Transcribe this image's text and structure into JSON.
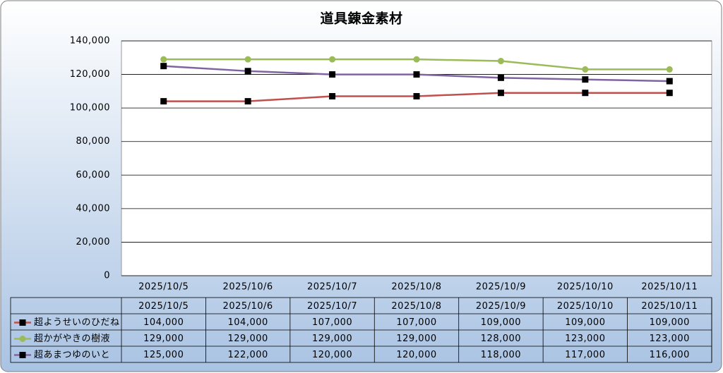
{
  "chart_data": {
    "type": "line",
    "title": "道具錬金素材",
    "categories": [
      "2025/10/5",
      "2025/10/6",
      "2025/10/7",
      "2025/10/8",
      "2025/10/9",
      "2025/10/10",
      "2025/10/11"
    ],
    "series": [
      {
        "name": "超ようせいのひだね",
        "color": "#c0504d",
        "marker": "square",
        "marker_color": "#000000",
        "values": [
          104000,
          104000,
          107000,
          107000,
          109000,
          109000,
          109000
        ],
        "value_labels": [
          "104,000",
          "104,000",
          "107,000",
          "107,000",
          "109,000",
          "109,000",
          "109,000"
        ]
      },
      {
        "name": "超かがやきの樹液",
        "color": "#9bbb59",
        "marker": "circle",
        "marker_color": "#9bbb59",
        "values": [
          129000,
          129000,
          129000,
          129000,
          128000,
          123000,
          123000
        ],
        "value_labels": [
          "129,000",
          "129,000",
          "129,000",
          "129,000",
          "128,000",
          "123,000",
          "123,000"
        ]
      },
      {
        "name": "超あまつゆのいと",
        "color": "#8064a2",
        "marker": "square",
        "marker_color": "#000000",
        "values": [
          125000,
          122000,
          120000,
          120000,
          118000,
          117000,
          116000
        ],
        "value_labels": [
          "125,000",
          "122,000",
          "120,000",
          "120,000",
          "118,000",
          "117,000",
          "116,000"
        ]
      }
    ],
    "ylim": [
      0,
      140000
    ],
    "yticks": [
      0,
      {
        "value": 20000,
        "label": "20,000"
      },
      {
        "value": 40000,
        "label": "40,000"
      },
      {
        "value": 60000,
        "label": "60,000"
      },
      {
        "value": 80000,
        "label": "80,000"
      },
      {
        "value": 100000,
        "label": "100,000"
      },
      {
        "value": 120000,
        "label": "120,000"
      },
      {
        "value": 140000,
        "label": "140,000"
      }
    ],
    "grid": true
  }
}
